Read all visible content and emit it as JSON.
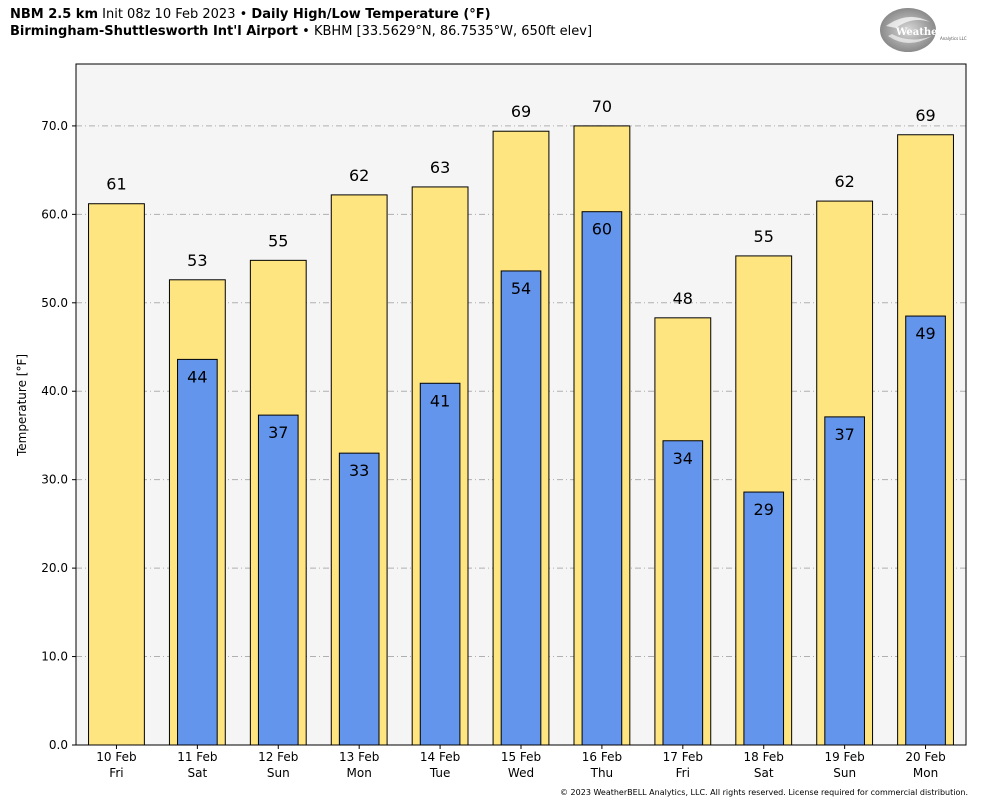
{
  "header": {
    "model": "NBM 2.5 km",
    "init": "Init 08z 10 Feb 2023",
    "sep": "•",
    "product": "Daily High/Low Temperature (°F)",
    "station": "Birmingham-Shuttlesworth Int'l Airport",
    "station_info": "KBHM [33.5629°N, 86.7535°W, 650ft elev]"
  },
  "logo": {
    "text": "WeatherBELL",
    "subtext": "Analytics LLC"
  },
  "footer": "© 2023 WeatherBELL Analytics, LLC. All rights reserved. License required for commercial distribution.",
  "colors": {
    "high": "#FFE57F",
    "low": "#6495ED",
    "plot_bg": "#F5F5F5",
    "grid": "#B0B0B0"
  },
  "chart_data": {
    "type": "bar",
    "ylabel": "Temperature [°F]",
    "ylim": [
      0,
      77
    ],
    "yticks": [
      "0.0",
      "10.0",
      "20.0",
      "30.0",
      "40.0",
      "50.0",
      "60.0",
      "70.0"
    ],
    "grid": true,
    "categories": [
      [
        "10 Feb",
        "Fri"
      ],
      [
        "11 Feb",
        "Sat"
      ],
      [
        "12 Feb",
        "Sun"
      ],
      [
        "13 Feb",
        "Mon"
      ],
      [
        "14 Feb",
        "Tue"
      ],
      [
        "15 Feb",
        "Wed"
      ],
      [
        "16 Feb",
        "Thu"
      ],
      [
        "17 Feb",
        "Fri"
      ],
      [
        "18 Feb",
        "Sat"
      ],
      [
        "19 Feb",
        "Sun"
      ],
      [
        "20 Feb",
        "Mon"
      ]
    ],
    "series": [
      {
        "name": "High",
        "values": [
          61.2,
          52.6,
          54.8,
          62.2,
          63.1,
          69.4,
          70.0,
          48.3,
          55.3,
          61.5,
          69.0
        ],
        "labels": [
          "61",
          "53",
          "55",
          "62",
          "63",
          "69",
          "70",
          "48",
          "55",
          "62",
          "69"
        ]
      },
      {
        "name": "Low",
        "values": [
          null,
          43.6,
          37.3,
          33.0,
          40.9,
          53.6,
          60.3,
          34.4,
          28.6,
          37.1,
          48.5
        ],
        "labels": [
          null,
          "44",
          "37",
          "33",
          "41",
          "54",
          "60",
          "34",
          "29",
          "37",
          "49"
        ]
      }
    ]
  }
}
